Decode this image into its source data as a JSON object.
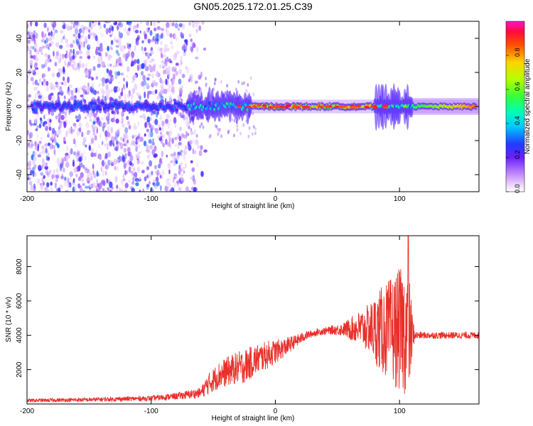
{
  "page": {
    "title": "GN05.2025.172.01.25.C39"
  },
  "colors": {
    "background": "#ffffff",
    "snr_line": "#e8302a",
    "axis": "#000000"
  },
  "chart_data": [
    {
      "type": "heatmap",
      "title": "GN05.2025.172.01.25.C39",
      "xlabel": "Height of straight line (km)",
      "ylabel": "Frequency (Hz)",
      "xlim": [
        -200,
        164
      ],
      "ylim": [
        -50,
        50
      ],
      "x_ticks": [
        -200,
        -100,
        0,
        100
      ],
      "x_tick_labels": [
        "-200",
        "-100",
        "0",
        "100"
      ],
      "y_ticks": [
        -40,
        -20,
        0,
        20,
        40
      ],
      "y_tick_labels": [
        "-40",
        "-20",
        "0",
        "20",
        "40"
      ],
      "colorbar": {
        "label": "Normalized spectral amplitude",
        "range": [
          0,
          1
        ],
        "ticks": [
          0.0,
          0.2,
          0.4,
          0.6,
          0.8
        ],
        "tick_labels": [
          "0.0",
          "0.2",
          "0.4",
          "0.6",
          "0.8"
        ],
        "colormap": "rainbow (white-violet-blue-cyan-green-yellow-red-magenta)"
      },
      "signal": {
        "center_frequency_hz": 0,
        "segments": [
          {
            "x_range": [
              -200,
              -70
            ],
            "character": "scattered noise across all frequencies, weak band near 0 Hz"
          },
          {
            "x_range": [
              -70,
              -20
            ],
            "character": "noise fading, band near 0 Hz with spread up to about 10 Hz"
          },
          {
            "x_range": [
              -20,
              80
            ],
            "character": "strong narrow band at 0 Hz, amplitude 0.6-0.9"
          },
          {
            "x_range": [
              80,
              110
            ],
            "character": "broadened band, spread up to about 20 Hz"
          },
          {
            "x_range": [
              110,
              164
            ],
            "character": "stable narrow band at 0 Hz, amplitude rising toward 0.9"
          }
        ]
      }
    },
    {
      "type": "line",
      "xlabel": "Height of straight line (km)",
      "ylabel": "SNR (10 * v/v)",
      "xlim": [
        -200,
        164
      ],
      "ylim": [
        0,
        9800
      ],
      "x_ticks": [
        -200,
        -100,
        0,
        100
      ],
      "x_tick_labels": [
        "-200",
        "-100",
        "0",
        "100"
      ],
      "y_ticks": [
        2000,
        4000,
        6000,
        8000
      ],
      "y_tick_labels": [
        "2000",
        "4000",
        "6000",
        "8000"
      ],
      "series": [
        {
          "color": "#e8302a",
          "envelope": {
            "x": [
              -200,
              -150,
              -100,
              -80,
              -60,
              -55,
              -45,
              -35,
              -25,
              -15,
              -5,
              5,
              15,
              25,
              35,
              45,
              55,
              65,
              75,
              85,
              95,
              100,
              105,
              108,
              112,
              120,
              140,
              164
            ],
            "mean": [
              200,
              250,
              330,
              450,
              650,
              1100,
              1700,
              2000,
              2200,
              2600,
              2900,
              3200,
              3600,
              4000,
              4200,
              4300,
              4350,
              4400,
              4400,
              4300,
              4300,
              4300,
              4300,
              4100,
              4000,
              4000,
              4000,
              4000
            ],
            "noise": [
              100,
              120,
              150,
              200,
              300,
              600,
              800,
              900,
              1000,
              900,
              800,
              600,
              400,
              250,
              200,
              250,
              400,
              900,
              1400,
              2500,
              3200,
              3600,
              3800,
              3200,
              250,
              200,
              200,
              200
            ]
          },
          "peak": {
            "x": 107,
            "y": 9800
          }
        }
      ]
    }
  ]
}
